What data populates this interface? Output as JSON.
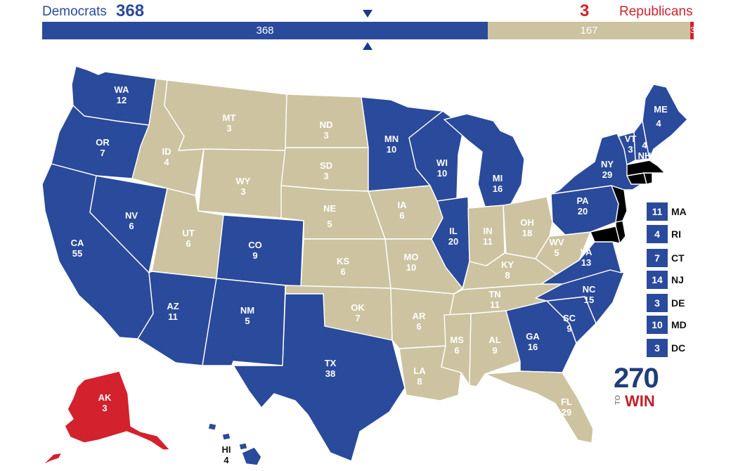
{
  "header": {
    "dem_label": "Democrats",
    "dem_total": "368",
    "rep_total": "3",
    "rep_label": "Republicans"
  },
  "tally": {
    "dem_value": "368",
    "tossup_value": "167",
    "rep_value": "3",
    "dem_votes": 368,
    "tossup_votes": 167,
    "rep_votes": 3
  },
  "colors": {
    "democrat": "#2a4a9b",
    "tossup": "#cdc3a0",
    "republican": "#d3212d"
  },
  "states": {
    "WA": {
      "abbr": "WA",
      "ev": "12",
      "party": "democrat"
    },
    "OR": {
      "abbr": "OR",
      "ev": "7",
      "party": "democrat"
    },
    "CA": {
      "abbr": "CA",
      "ev": "55",
      "party": "democrat"
    },
    "NV": {
      "abbr": "NV",
      "ev": "6",
      "party": "democrat"
    },
    "ID": {
      "abbr": "ID",
      "ev": "4",
      "party": "tossup"
    },
    "MT": {
      "abbr": "MT",
      "ev": "3",
      "party": "tossup"
    },
    "WY": {
      "abbr": "WY",
      "ev": "3",
      "party": "tossup"
    },
    "UT": {
      "abbr": "UT",
      "ev": "6",
      "party": "tossup"
    },
    "AZ": {
      "abbr": "AZ",
      "ev": "11",
      "party": "democrat"
    },
    "CO": {
      "abbr": "CO",
      "ev": "9",
      "party": "democrat"
    },
    "NM": {
      "abbr": "NM",
      "ev": "5",
      "party": "democrat"
    },
    "ND": {
      "abbr": "ND",
      "ev": "3",
      "party": "tossup"
    },
    "SD": {
      "abbr": "SD",
      "ev": "3",
      "party": "tossup"
    },
    "NE": {
      "abbr": "NE",
      "ev": "5",
      "party": "tossup"
    },
    "KS": {
      "abbr": "KS",
      "ev": "6",
      "party": "tossup"
    },
    "OK": {
      "abbr": "OK",
      "ev": "7",
      "party": "tossup"
    },
    "TX": {
      "abbr": "TX",
      "ev": "38",
      "party": "democrat"
    },
    "MN": {
      "abbr": "MN",
      "ev": "10",
      "party": "democrat"
    },
    "IA": {
      "abbr": "IA",
      "ev": "6",
      "party": "tossup"
    },
    "MO": {
      "abbr": "MO",
      "ev": "10",
      "party": "tossup"
    },
    "AR": {
      "abbr": "AR",
      "ev": "6",
      "party": "tossup"
    },
    "LA": {
      "abbr": "LA",
      "ev": "8",
      "party": "tossup"
    },
    "WI": {
      "abbr": "WI",
      "ev": "10",
      "party": "democrat"
    },
    "IL": {
      "abbr": "IL",
      "ev": "20",
      "party": "democrat"
    },
    "MI": {
      "abbr": "MI",
      "ev": "16",
      "party": "democrat"
    },
    "IN": {
      "abbr": "IN",
      "ev": "11",
      "party": "tossup"
    },
    "OH": {
      "abbr": "OH",
      "ev": "18",
      "party": "tossup"
    },
    "KY": {
      "abbr": "KY",
      "ev": "8",
      "party": "tossup"
    },
    "TN": {
      "abbr": "TN",
      "ev": "11",
      "party": "tossup"
    },
    "MS": {
      "abbr": "MS",
      "ev": "6",
      "party": "tossup"
    },
    "AL": {
      "abbr": "AL",
      "ev": "9",
      "party": "tossup"
    },
    "GA": {
      "abbr": "GA",
      "ev": "16",
      "party": "democrat"
    },
    "FL": {
      "abbr": "FL",
      "ev": "29",
      "party": "tossup"
    },
    "SC": {
      "abbr": "SC",
      "ev": "9",
      "party": "democrat"
    },
    "NC": {
      "abbr": "NC",
      "ev": "15",
      "party": "democrat"
    },
    "VA": {
      "abbr": "VA",
      "ev": "13",
      "party": "democrat"
    },
    "WV": {
      "abbr": "WV",
      "ev": "5",
      "party": "tossup"
    },
    "PA": {
      "abbr": "PA",
      "ev": "20",
      "party": "democrat"
    },
    "NY": {
      "abbr": "NY",
      "ev": "29",
      "party": "democrat"
    },
    "VT": {
      "abbr": "VT",
      "ev": "3",
      "party": "democrat"
    },
    "NH": {
      "abbr": "NH",
      "ev": "4",
      "party": "democrat"
    },
    "ME": {
      "abbr": "ME",
      "ev": "4",
      "party": "democrat"
    },
    "AK": {
      "abbr": "AK",
      "ev": "3",
      "party": "republican"
    },
    "HI": {
      "abbr": "HI",
      "ev": "4",
      "party": "democrat"
    }
  },
  "small_states": [
    {
      "ev": "11",
      "abbr": "MA"
    },
    {
      "ev": "4",
      "abbr": "RI"
    },
    {
      "ev": "7",
      "abbr": "CT"
    },
    {
      "ev": "14",
      "abbr": "NJ"
    },
    {
      "ev": "3",
      "abbr": "DE"
    },
    {
      "ev": "10",
      "abbr": "MD"
    },
    {
      "ev": "3",
      "abbr": "DC"
    }
  ],
  "logo": {
    "number": "270",
    "to": "TO",
    "win": "WIN"
  }
}
